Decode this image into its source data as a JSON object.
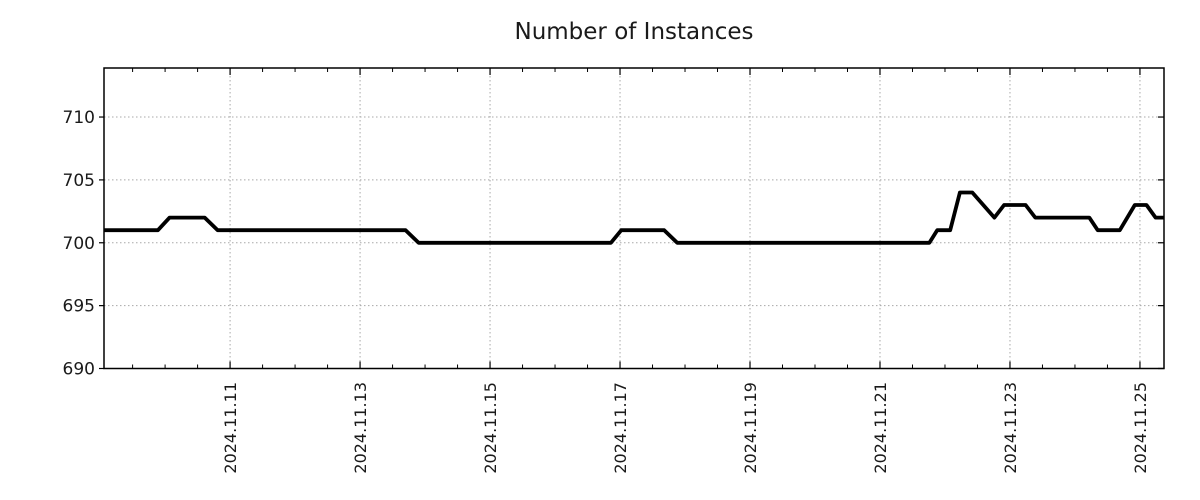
{
  "chart_data": {
    "type": "line",
    "title": "Number of Instances",
    "xlabel": "",
    "ylabel": "",
    "legend": "none",
    "grid": {
      "style": "dotted",
      "color": "#a8a8a8",
      "major_only": true
    },
    "x_axis": {
      "kind": "time",
      "unit": "day of November 2024 (fractional)",
      "range_days": [
        9.06,
        25.37
      ],
      "major_ticks_days": [
        11,
        13,
        15,
        17,
        19,
        21,
        23,
        25
      ],
      "major_tick_labels": [
        "2024.11.11",
        "2024.11.13",
        "2024.11.15",
        "2024.11.17",
        "2024.11.19",
        "2024.11.21",
        "2024.11.23",
        "2024.11.25"
      ],
      "minor_tick_interval_days": 0.5,
      "tick_label_rotation_deg": 90
    },
    "y_axis": {
      "range": [
        690,
        713.9
      ],
      "major_ticks": [
        690,
        695,
        700,
        705,
        710
      ]
    },
    "series": [
      {
        "name": "instances",
        "color": "#000000",
        "line_width": 3.8,
        "points_day_value": [
          [
            9.06,
            701
          ],
          [
            9.89,
            701
          ],
          [
            10.07,
            702
          ],
          [
            10.61,
            702
          ],
          [
            10.81,
            701
          ],
          [
            13.7,
            701
          ],
          [
            13.9,
            700
          ],
          [
            16.86,
            700
          ],
          [
            17.02,
            701
          ],
          [
            17.68,
            701
          ],
          [
            17.88,
            700
          ],
          [
            21.76,
            700
          ],
          [
            21.88,
            701
          ],
          [
            22.08,
            701
          ],
          [
            22.23,
            704
          ],
          [
            22.42,
            704
          ],
          [
            22.76,
            702
          ],
          [
            22.91,
            703
          ],
          [
            23.24,
            703
          ],
          [
            23.39,
            702
          ],
          [
            24.22,
            702
          ],
          [
            24.35,
            701
          ],
          [
            24.69,
            701
          ],
          [
            24.92,
            703
          ],
          [
            25.1,
            703
          ],
          [
            25.24,
            702
          ],
          [
            25.37,
            702
          ]
        ]
      }
    ]
  },
  "colors": {
    "background": "#ffffff",
    "frame": "#000000",
    "tick": "#000000",
    "grid": "#a8a8a8",
    "title_text": "#1a1a1a",
    "tick_label_text": "#1a1a1a"
  }
}
